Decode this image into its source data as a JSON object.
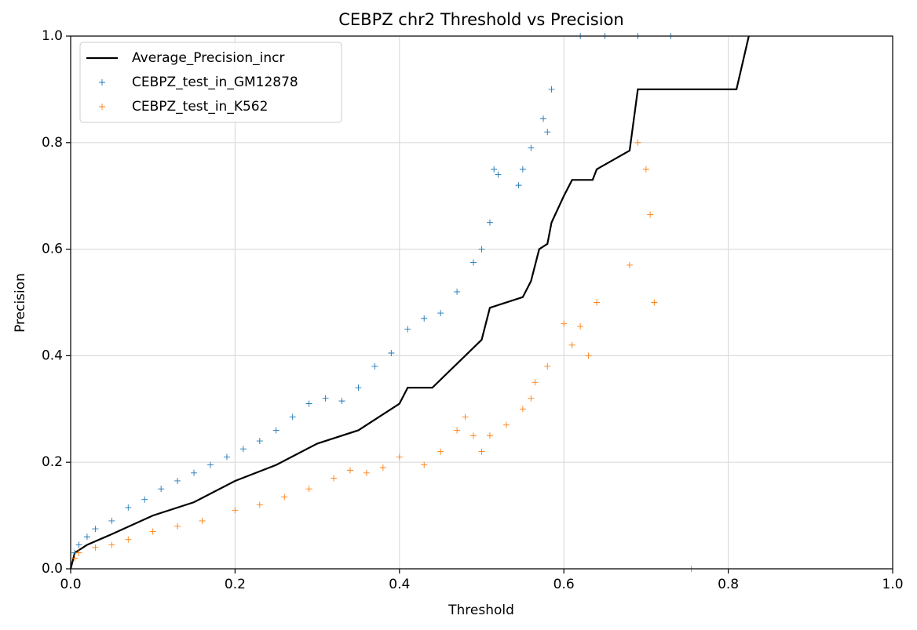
{
  "chart_data": {
    "type": "line",
    "title": "CEBPZ chr2 Threshold vs Precision",
    "x_label": "Threshold",
    "y_label": "Precision",
    "xlim": [
      0,
      1
    ],
    "ylim": [
      0,
      1
    ],
    "xticks": [
      {
        "value": 0,
        "label": "0.0"
      },
      0.2,
      0.4,
      0.6,
      0.8,
      {
        "value": 1,
        "label": "1.0"
      }
    ],
    "yticks": [
      {
        "value": 0,
        "label": "0.0"
      },
      0.2,
      0.4,
      0.6,
      0.8,
      {
        "value": 1,
        "label": "1.0"
      }
    ],
    "grid": true,
    "legend": "upper-left",
    "series": [
      {
        "name": "Average_Precision_incr",
        "kind": "line",
        "color": "#000000",
        "x": [
          0,
          0.005,
          0.02,
          0.05,
          0.1,
          0.15,
          0.2,
          0.25,
          0.3,
          0.35,
          0.4,
          0.41,
          0.44,
          0.46,
          0.48,
          0.5,
          0.51,
          0.55,
          0.56,
          0.57,
          0.58,
          0.585,
          0.6,
          0.61,
          0.635,
          0.64,
          0.68,
          0.69,
          0.81,
          0.825
        ],
        "values": [
          0,
          0.03,
          0.045,
          0.065,
          0.1,
          0.125,
          0.165,
          0.195,
          0.235,
          0.26,
          0.31,
          0.34,
          0.34,
          0.37,
          0.4,
          0.43,
          0.49,
          0.51,
          0.54,
          0.6,
          0.61,
          0.65,
          0.7,
          0.73,
          0.73,
          0.75,
          0.785,
          0.9,
          0.9,
          1.0
        ]
      },
      {
        "name": "CEBPZ_test_in_GM12878",
        "kind": "scatter",
        "color": "#1f77b4",
        "x": [
          0.005,
          0.01,
          0.02,
          0.03,
          0.05,
          0.07,
          0.09,
          0.11,
          0.13,
          0.15,
          0.17,
          0.19,
          0.21,
          0.23,
          0.25,
          0.27,
          0.29,
          0.31,
          0.33,
          0.35,
          0.37,
          0.39,
          0.41,
          0.43,
          0.45,
          0.47,
          0.49,
          0.5,
          0.51,
          0.515,
          0.52,
          0.545,
          0.55,
          0.56,
          0.575,
          0.58,
          0.585,
          0.62,
          0.65,
          0.69,
          0.73
        ],
        "values": [
          0.03,
          0.045,
          0.06,
          0.075,
          0.09,
          0.115,
          0.13,
          0.15,
          0.165,
          0.18,
          0.195,
          0.21,
          0.225,
          0.24,
          0.26,
          0.285,
          0.31,
          0.32,
          0.315,
          0.34,
          0.38,
          0.405,
          0.45,
          0.47,
          0.48,
          0.52,
          0.575,
          0.6,
          0.65,
          0.75,
          0.74,
          0.72,
          0.75,
          0.79,
          0.845,
          0.82,
          0.9,
          1.0,
          1.0,
          1.0,
          1.0
        ]
      },
      {
        "name": "CEBPZ_test_in_K562",
        "kind": "scatter",
        "color": "#ff7f0e",
        "x": [
          0.005,
          0.01,
          0.03,
          0.05,
          0.07,
          0.1,
          0.13,
          0.16,
          0.2,
          0.23,
          0.26,
          0.29,
          0.32,
          0.34,
          0.36,
          0.38,
          0.4,
          0.43,
          0.45,
          0.47,
          0.48,
          0.49,
          0.5,
          0.51,
          0.53,
          0.55,
          0.56,
          0.565,
          0.58,
          0.6,
          0.61,
          0.62,
          0.63,
          0.64,
          0.68,
          0.69,
          0.7,
          0.705,
          0.71,
          0.755
        ],
        "values": [
          0.02,
          0.03,
          0.04,
          0.045,
          0.055,
          0.07,
          0.08,
          0.09,
          0.11,
          0.12,
          0.135,
          0.15,
          0.17,
          0.185,
          0.18,
          0.19,
          0.21,
          0.195,
          0.22,
          0.26,
          0.285,
          0.25,
          0.22,
          0.25,
          0.27,
          0.3,
          0.32,
          0.35,
          0.38,
          0.46,
          0.42,
          0.455,
          0.4,
          0.5,
          0.57,
          0.8,
          0.75,
          0.665,
          0.5,
          0.0
        ]
      }
    ]
  }
}
